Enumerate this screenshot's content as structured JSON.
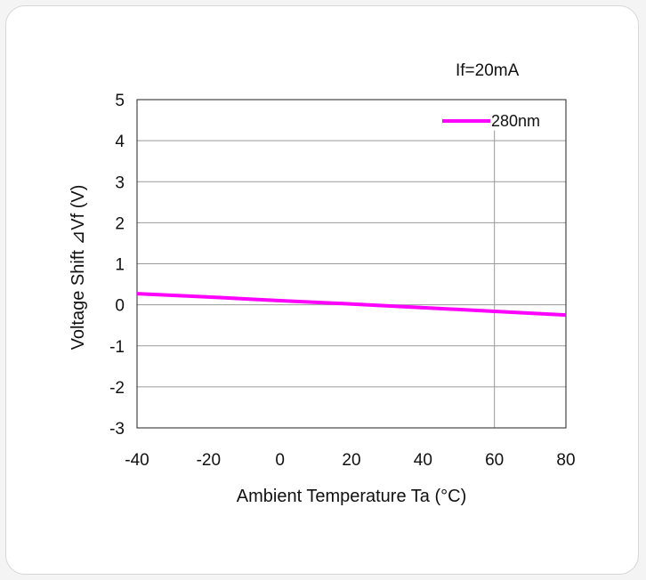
{
  "chart_data": {
    "type": "line",
    "annotation": "If=20mA",
    "xlabel": "Ambient Temperature Ta (°C)",
    "ylabel": "Voltage Shift ⊿Vf (V)",
    "xlim": [
      -40,
      80
    ],
    "ylim": [
      -3,
      5
    ],
    "x_ticks": [
      "-40",
      "-20",
      "0",
      "20",
      "40",
      "60",
      "80"
    ],
    "y_ticks": [
      "5",
      "4",
      "3",
      "2",
      "1",
      "0",
      "-1",
      "-2",
      "-3"
    ],
    "grid": "horizontal",
    "legend_position": "top-right",
    "series": [
      {
        "name": "280nm",
        "color": "#ff00ff",
        "x": [
          -40,
          -20,
          0,
          20,
          40,
          60,
          80
        ],
        "y": [
          0.27,
          0.19,
          0.1,
          0.02,
          -0.07,
          -0.16,
          -0.25
        ]
      }
    ]
  }
}
